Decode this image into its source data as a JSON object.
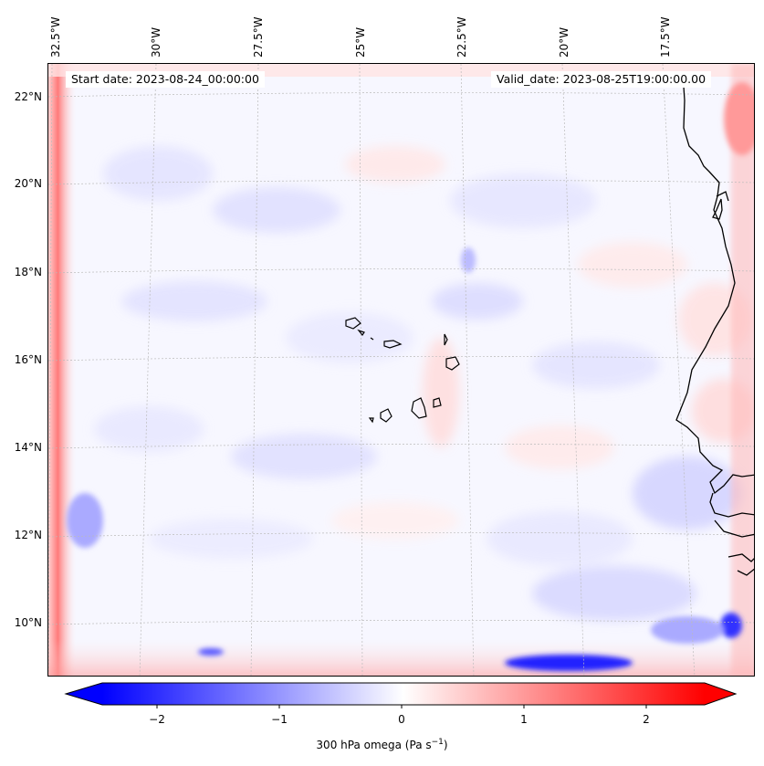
{
  "map": {
    "start_date": "Start date: 2023-08-24_00:00:00",
    "valid_date": "Valid_date: 2023-08-25T19:00:00.00",
    "lon_labels": [
      "32.5°W",
      "30°W",
      "27.5°W",
      "25°W",
      "22.5°W",
      "20°W",
      "17.5°W"
    ],
    "lat_labels": [
      "22°N",
      "20°N",
      "18°N",
      "16°N",
      "14°N",
      "12°N",
      "10°N"
    ],
    "field": "300 hPa omega",
    "colors": {
      "negative": "#0000ff",
      "zero": "#ffffff",
      "positive": "#ff0000",
      "coast": "#000000",
      "grid": "#bbbbbb"
    }
  },
  "colorbar": {
    "ticks": [
      "−2",
      "−1",
      "0",
      "1",
      "2"
    ],
    "tick_values": [
      -2,
      -1,
      0,
      1,
      2
    ],
    "range": [
      -2.5,
      2.5
    ],
    "label": "300 hPa omega (Pa s",
    "label_exp": "−1",
    "label_end": ")"
  }
}
